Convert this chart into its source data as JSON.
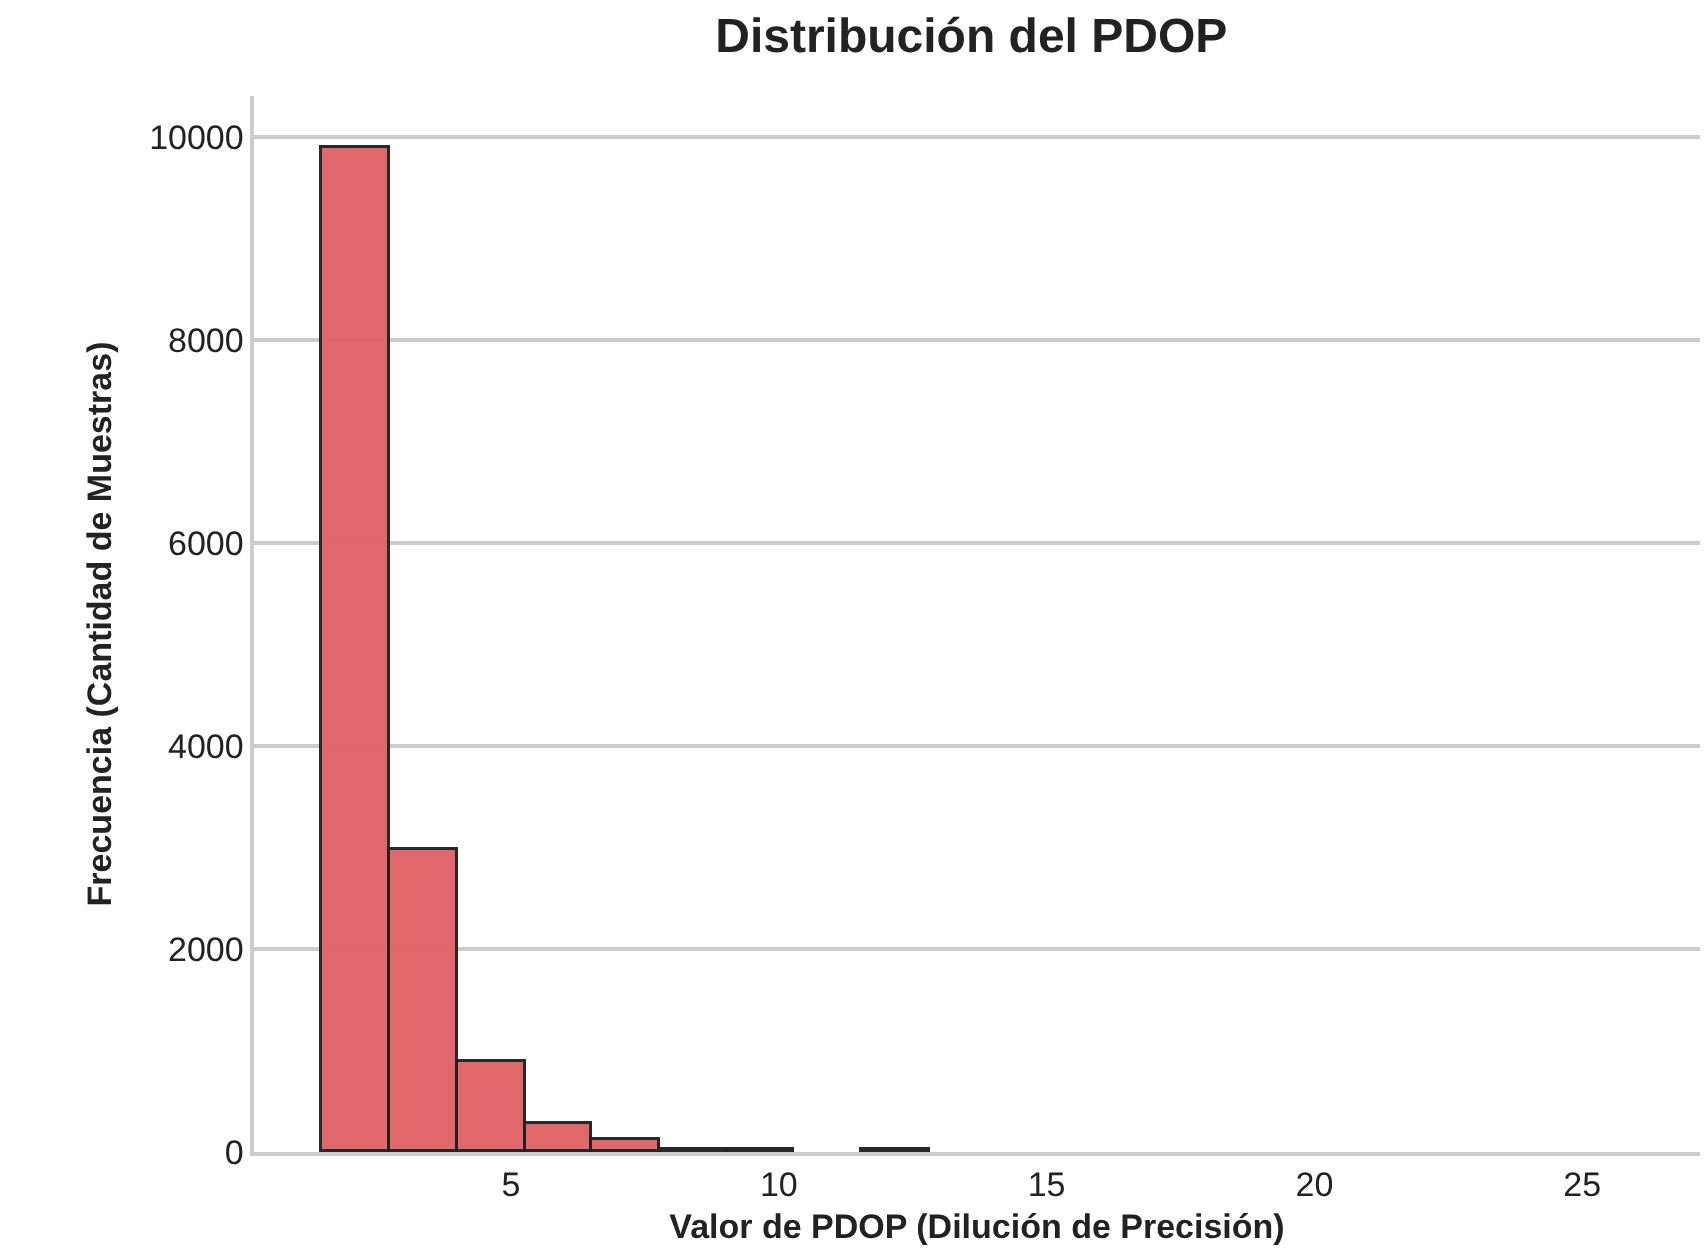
{
  "chart_data": {
    "type": "histogram",
    "title": "Distribución del PDOP",
    "xlabel": "Valor de PDOP (Dilución de Precisión)",
    "ylabel": "Frecuencia (Cantidad de Muestras)",
    "bins": [
      1.48,
      2.74,
      4.0,
      5.26,
      6.52,
      7.78,
      9.04,
      10.3,
      11.56,
      12.82,
      14.08,
      15.34,
      16.6,
      17.86,
      19.12,
      20.38,
      21.64,
      22.9,
      24.16,
      25.42,
      26.68
    ],
    "values": [
      9880,
      2980,
      890,
      280,
      120,
      20,
      10,
      0,
      10,
      0,
      0,
      0,
      0,
      0,
      0,
      0,
      0,
      0,
      0,
      0
    ],
    "color": "#e06467",
    "xlim": [
      0.2,
      27.2
    ],
    "xticks": [
      5,
      10,
      15,
      20,
      25
    ],
    "ylim": [
      0,
      10400
    ],
    "yticks": [
      0,
      2000,
      4000,
      6000,
      8000,
      10000
    ],
    "grid": "y"
  }
}
